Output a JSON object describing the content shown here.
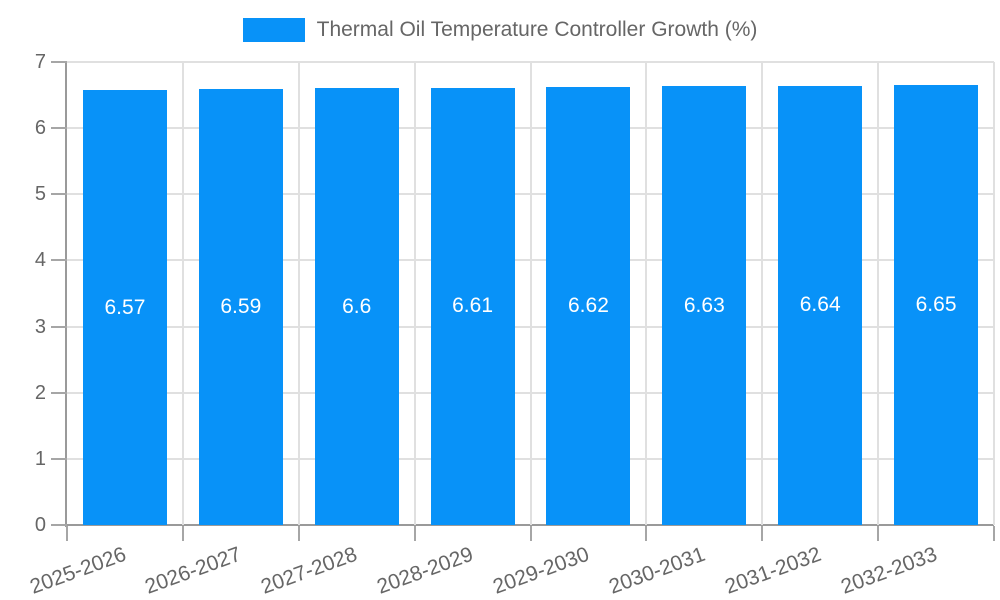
{
  "chart_data": {
    "type": "bar",
    "title": "Thermal Oil Temperature Controller Growth (%)",
    "legend_position": "top",
    "categories": [
      "2025-2026",
      "2026-2027",
      "2027-2028",
      "2028-2029",
      "2029-2030",
      "2030-2031",
      "2031-2032",
      "2032-2033"
    ],
    "series": [
      {
        "name": "Thermal Oil Temperature Controller Growth (%)",
        "values": [
          6.57,
          6.59,
          6.6,
          6.61,
          6.62,
          6.63,
          6.64,
          6.65
        ]
      }
    ],
    "xlabel": "",
    "ylabel": "",
    "ylim": [
      0,
      7
    ],
    "yticks": [
      0,
      1,
      2,
      3,
      4,
      5,
      6,
      7
    ],
    "grid": true,
    "value_labels_inside_bars": true,
    "colors": {
      "bar": "#0892f8",
      "grid": "#e0e0e0",
      "axis": "#9a9a9a",
      "tick": "#a6a6a6",
      "text": "#666666",
      "value_label": "#ffffff",
      "background": "#ffffff"
    }
  }
}
